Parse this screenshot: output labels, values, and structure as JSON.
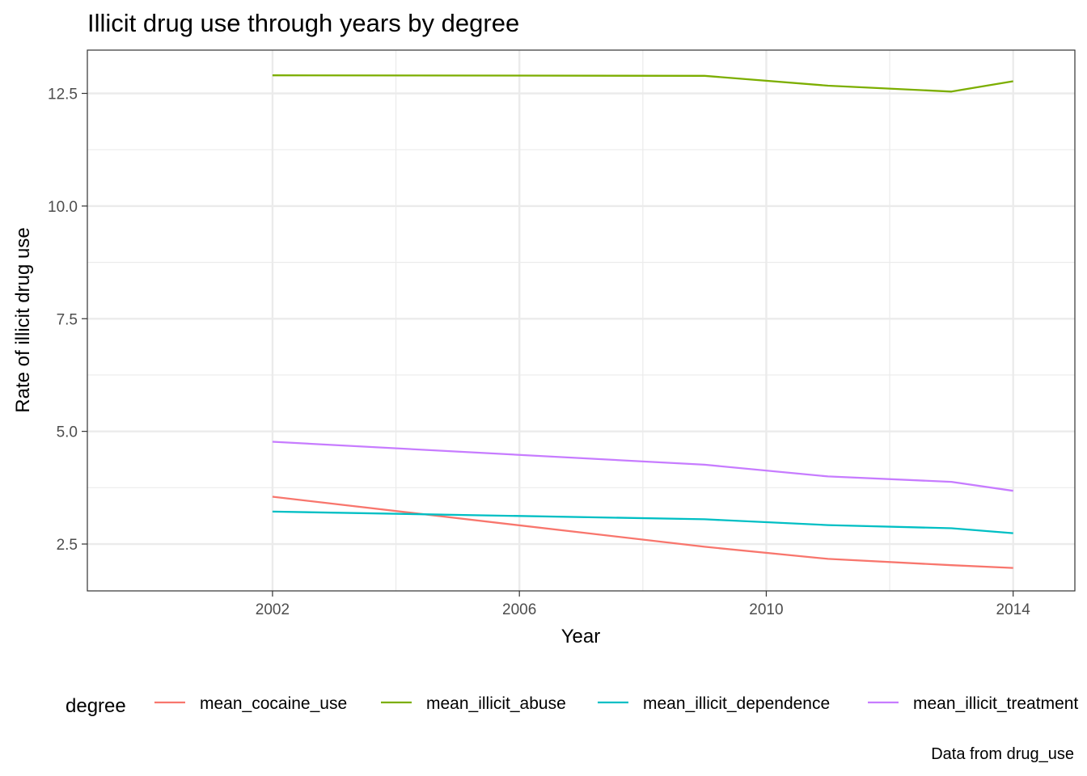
{
  "chart_data": {
    "type": "line",
    "title": "Illicit drug use through years by degree",
    "xlabel": "Year",
    "ylabel": "Rate of illicit drug use",
    "caption": "Data from drug_use",
    "xlim": [
      1999.0,
      2015.0
    ],
    "ylim": [
      1.46,
      13.46
    ],
    "x_ticks": [
      2002,
      2006,
      2010,
      2014
    ],
    "x_tick_labels": [
      "2002",
      "2006",
      "2010",
      "2014"
    ],
    "y_ticks": [
      2.5,
      5.0,
      7.5,
      10.0,
      12.5
    ],
    "y_tick_labels": [
      "2.5",
      "5.0",
      "7.5",
      "10.0",
      "12.5"
    ],
    "grid": true,
    "legend": {
      "title": "degree",
      "placement": "bottom"
    },
    "x": [
      2002,
      2009,
      2011,
      2013,
      2014
    ],
    "series": [
      {
        "name": "mean_cocaine_use",
        "color": "#F8766D",
        "values": [
          3.55,
          2.44,
          2.17,
          2.03,
          1.97
        ]
      },
      {
        "name": "mean_illicit_abuse",
        "color": "#7CAE00",
        "values": [
          12.9,
          12.89,
          12.67,
          12.54,
          12.77
        ]
      },
      {
        "name": "mean_illicit_dependence",
        "color": "#00BFC4",
        "values": [
          3.22,
          3.05,
          2.92,
          2.85,
          2.74
        ]
      },
      {
        "name": "mean_illicit_treatment",
        "color": "#C77CFF",
        "values": [
          4.77,
          4.26,
          4.0,
          3.88,
          3.68
        ]
      }
    ]
  }
}
